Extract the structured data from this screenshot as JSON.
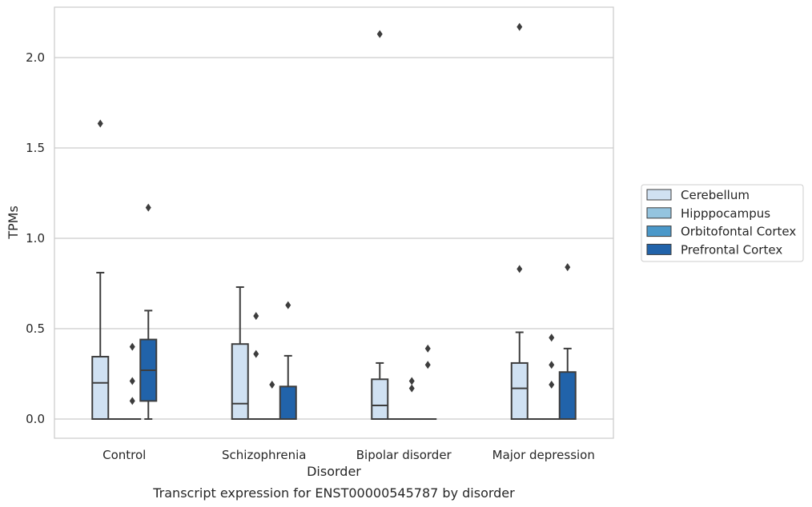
{
  "chart_data": {
    "type": "box",
    "title": "",
    "caption": "Transcript expression for ENST00000545787 by disorder",
    "xlabel": "Disorder",
    "ylabel": "TPMs",
    "ylim": [
      -0.1,
      2.28
    ],
    "yticks": [
      0.0,
      0.5,
      1.0,
      1.5,
      2.0
    ],
    "ytick_labels": [
      "0.0",
      "0.5",
      "1.0",
      "1.5",
      "2.0"
    ],
    "grid": "horizontal",
    "legend_position": "right",
    "categories": [
      "Control",
      "Schizophrenia",
      "Bipolar disorder",
      "Major depression"
    ],
    "series": [
      {
        "name": "Cerebellum",
        "color": "#d0e1f2",
        "boxes": [
          {
            "min": 0.0,
            "q1": 0.0,
            "median": 0.2,
            "q3": 0.345,
            "max": 0.81,
            "outliers": [
              1.635
            ]
          },
          {
            "min": 0.0,
            "q1": 0.0,
            "median": 0.085,
            "q3": 0.415,
            "max": 0.73,
            "outliers": []
          },
          {
            "min": 0.0,
            "q1": 0.0,
            "median": 0.075,
            "q3": 0.22,
            "max": 0.31,
            "outliers": [
              2.13
            ]
          },
          {
            "min": 0.0,
            "q1": 0.0,
            "median": 0.17,
            "q3": 0.31,
            "max": 0.48,
            "outliers": [
              2.17,
              0.83
            ]
          }
        ]
      },
      {
        "name": "Hipppocampus",
        "color": "#94c4df",
        "boxes": [
          {
            "min": 0.0,
            "q1": 0.0,
            "median": 0.0,
            "q3": 0.0,
            "max": 0.0,
            "outliers": []
          },
          {
            "min": 0.0,
            "q1": 0.0,
            "median": 0.0,
            "q3": 0.0,
            "max": 0.0,
            "outliers": [
              0.57,
              0.36
            ]
          },
          {
            "min": 0.0,
            "q1": 0.0,
            "median": 0.0,
            "q3": 0.0,
            "max": 0.0,
            "outliers": []
          },
          {
            "min": 0.0,
            "q1": 0.0,
            "median": 0.0,
            "q3": 0.0,
            "max": 0.0,
            "outliers": []
          }
        ]
      },
      {
        "name": "Orbitofontal Cortex",
        "color": "#4a98c9",
        "boxes": [
          {
            "min": 0.0,
            "q1": 0.0,
            "median": 0.0,
            "q3": 0.0,
            "max": 0.0,
            "outliers": [
              0.4,
              0.21,
              0.1
            ]
          },
          {
            "min": 0.0,
            "q1": 0.0,
            "median": 0.0,
            "q3": 0.0,
            "max": 0.0,
            "outliers": [
              0.19
            ]
          },
          {
            "min": 0.0,
            "q1": 0.0,
            "median": 0.0,
            "q3": 0.0,
            "max": 0.0,
            "outliers": [
              0.21,
              0.17
            ]
          },
          {
            "min": 0.0,
            "q1": 0.0,
            "median": 0.0,
            "q3": 0.0,
            "max": 0.0,
            "outliers": [
              0.45,
              0.3,
              0.19
            ]
          }
        ]
      },
      {
        "name": "Prefrontal Cortex",
        "color": "#2163aa",
        "boxes": [
          {
            "min": 0.0,
            "q1": 0.1,
            "median": 0.27,
            "q3": 0.44,
            "max": 0.6,
            "outliers": [
              1.17
            ]
          },
          {
            "min": 0.0,
            "q1": 0.0,
            "median": 0.0,
            "q3": 0.18,
            "max": 0.35,
            "outliers": [
              0.63
            ]
          },
          {
            "min": 0.0,
            "q1": 0.0,
            "median": 0.0,
            "q3": 0.0,
            "max": 0.0,
            "outliers": [
              0.39,
              0.3
            ]
          },
          {
            "min": 0.0,
            "q1": 0.0,
            "median": 0.0,
            "q3": 0.26,
            "max": 0.39,
            "outliers": [
              0.84
            ]
          }
        ]
      }
    ]
  }
}
